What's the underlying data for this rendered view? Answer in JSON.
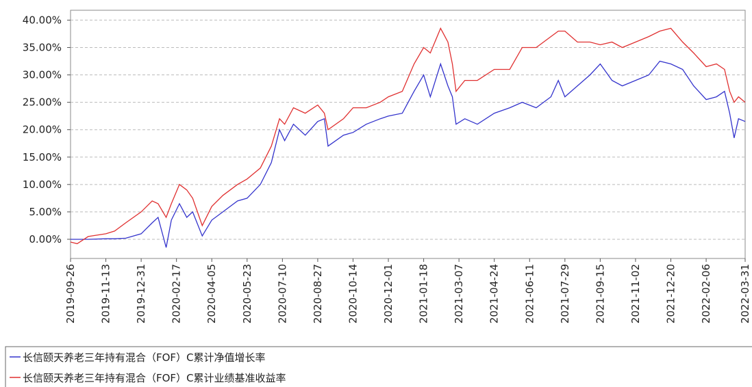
{
  "chart_data": {
    "type": "line",
    "x": [
      "2019-09-26",
      "2019-10-05",
      "2019-10-20",
      "2019-11-13",
      "2019-11-25",
      "2019-12-10",
      "2019-12-31",
      "2020-01-15",
      "2020-01-23",
      "2020-02-03",
      "2020-02-10",
      "2020-02-21",
      "2020-03-02",
      "2020-03-10",
      "2020-03-23",
      "2020-04-05",
      "2020-04-20",
      "2020-05-10",
      "2020-05-23",
      "2020-06-10",
      "2020-06-25",
      "2020-07-06",
      "2020-07-13",
      "2020-07-25",
      "2020-08-10",
      "2020-08-27",
      "2020-09-05",
      "2020-09-10",
      "2020-10-01",
      "2020-10-14",
      "2020-11-01",
      "2020-11-20",
      "2020-12-01",
      "2020-12-20",
      "2021-01-05",
      "2021-01-18",
      "2021-01-27",
      "2021-02-10",
      "2021-02-20",
      "2021-02-26",
      "2021-03-03",
      "2021-03-15",
      "2021-04-01",
      "2021-04-24",
      "2021-05-15",
      "2021-06-01",
      "2021-06-20",
      "2021-07-10",
      "2021-07-20",
      "2021-07-29",
      "2021-08-15",
      "2021-09-01",
      "2021-09-15",
      "2021-10-01",
      "2021-10-15",
      "2021-11-02",
      "2021-11-20",
      "2021-12-05",
      "2021-12-20",
      "2022-01-05",
      "2022-01-20",
      "2022-02-06",
      "2022-02-20",
      "2022-03-03",
      "2022-03-10",
      "2022-03-16",
      "2022-03-22",
      "2022-03-31"
    ],
    "series": [
      {
        "name": "长信颐天养老三年持有混合（FOF）C累计净值增长率",
        "color": "#3333cc",
        "values": [
          0,
          0,
          0,
          0.1,
          0.1,
          0.2,
          1,
          3,
          4,
          -1.5,
          3.5,
          6.5,
          4,
          5,
          0.6,
          3.5,
          5,
          7,
          7.5,
          10,
          14,
          20,
          18,
          21,
          19,
          21.5,
          22,
          17,
          19,
          19.5,
          21,
          22,
          22.5,
          23,
          27,
          30,
          26,
          32,
          28,
          26,
          21,
          22,
          21,
          23,
          24,
          25,
          24,
          26,
          29,
          26,
          28,
          30,
          32,
          29,
          28,
          29,
          30,
          32.5,
          32,
          31,
          28,
          25.5,
          26,
          27,
          23,
          18.5,
          22,
          21.5
        ]
      },
      {
        "name": "长信颐天养老三年持有混合（FOF）C累计业绩基准收益率",
        "color": "#e03030",
        "values": [
          -0.5,
          -0.8,
          0.5,
          1,
          1.5,
          3,
          5,
          7,
          6.5,
          4,
          6.5,
          10,
          9,
          7.5,
          2.5,
          6,
          8,
          10,
          11,
          13,
          17,
          22,
          21,
          24,
          23,
          24.5,
          23,
          20,
          22,
          24,
          24,
          25,
          26,
          27,
          32,
          35,
          34,
          38.5,
          36,
          32,
          27,
          29,
          29,
          31,
          31,
          35,
          35,
          37,
          38,
          38,
          36,
          36,
          35.5,
          36,
          35,
          36,
          37,
          38,
          38.5,
          36,
          34,
          31.5,
          32,
          31,
          27,
          25,
          26,
          25
        ]
      }
    ],
    "xlim": [
      "2019-09-26",
      "2022-03-31"
    ],
    "xticks": [
      "2019-09-26",
      "2019-11-13",
      "2019-12-31",
      "2020-02-17",
      "2020-04-05",
      "2020-05-23",
      "2020-07-10",
      "2020-08-27",
      "2020-10-14",
      "2020-12-01",
      "2021-01-18",
      "2021-03-07",
      "2021-04-24",
      "2021-06-11",
      "2021-07-29",
      "2021-09-15",
      "2021-11-02",
      "2021-12-20",
      "2022-02-06",
      "2022-03-31"
    ],
    "ylim": [
      -3.5,
      41.8
    ],
    "yticks": [
      {
        "value": 0,
        "label": "0.00%"
      },
      {
        "value": 5,
        "label": "5.00%"
      },
      {
        "value": 10,
        "label": "10.00%"
      },
      {
        "value": 15,
        "label": "15.00%"
      },
      {
        "value": 20,
        "label": "20.00%"
      },
      {
        "value": 25,
        "label": "25.00%"
      },
      {
        "value": 30,
        "label": "30.00%"
      },
      {
        "value": 35,
        "label": "35.00%"
      },
      {
        "value": 40,
        "label": "40.00%"
      }
    ],
    "grid": true,
    "legend": "bottom"
  }
}
